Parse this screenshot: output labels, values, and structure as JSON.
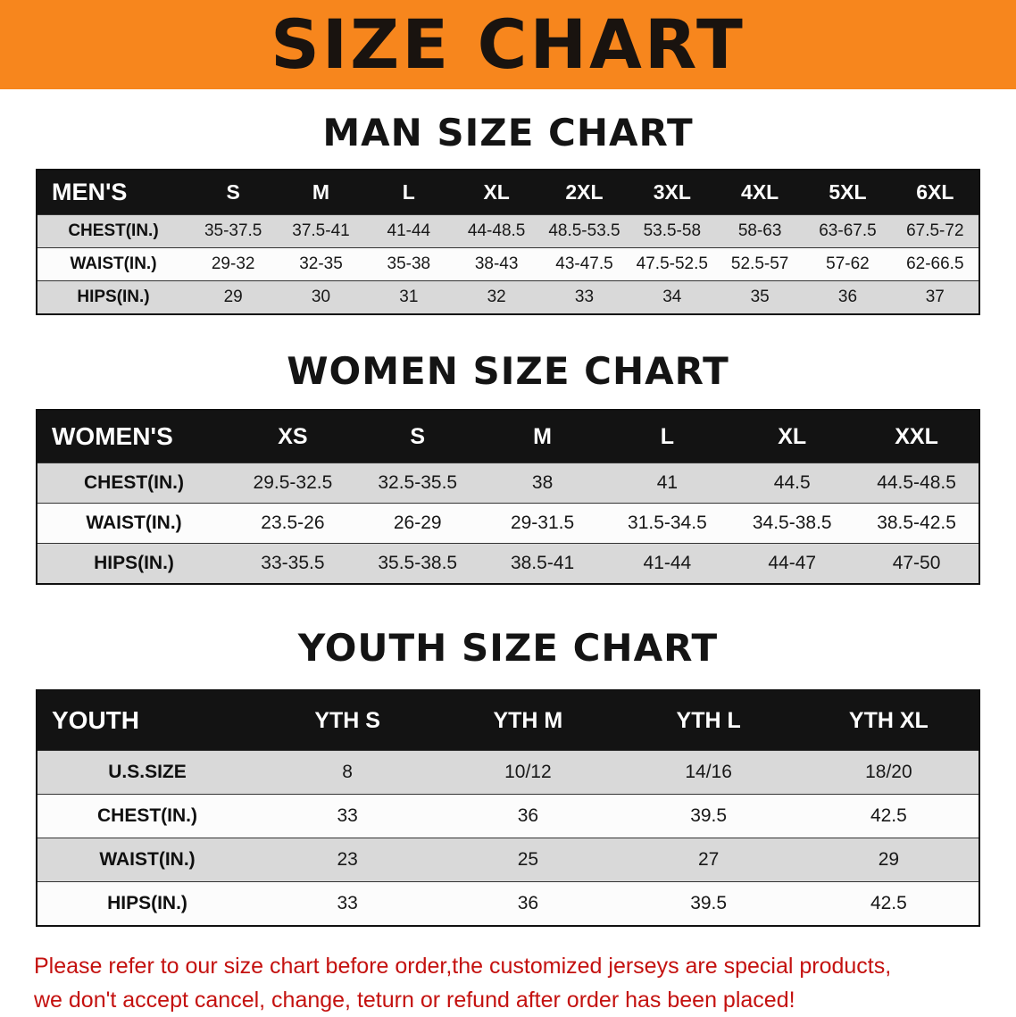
{
  "banner": {
    "title": "SIZE CHART",
    "bg_color": "#f7861d",
    "text_color": "#19130f"
  },
  "chart_data": [
    {
      "type": "table",
      "title": "MAN SIZE CHART",
      "columns": [
        "MEN'S",
        "S",
        "M",
        "L",
        "XL",
        "2XL",
        "3XL",
        "4XL",
        "5XL",
        "6XL"
      ],
      "rows": [
        [
          "CHEST(IN.)",
          "35-37.5",
          "37.5-41",
          "41-44",
          "44-48.5",
          "48.5-53.5",
          "53.5-58",
          "58-63",
          "63-67.5",
          "67.5-72"
        ],
        [
          "WAIST(IN.)",
          "29-32",
          "32-35",
          "35-38",
          "38-43",
          "43-47.5",
          "47.5-52.5",
          "52.5-57",
          "57-62",
          "62-66.5"
        ],
        [
          "HIPS(IN.)",
          "29",
          "30",
          "31",
          "32",
          "33",
          "34",
          "35",
          "36",
          "37"
        ]
      ]
    },
    {
      "type": "table",
      "title": "WOMEN SIZE CHART",
      "columns": [
        "WOMEN'S",
        "XS",
        "S",
        "M",
        "L",
        "XL",
        "XXL"
      ],
      "rows": [
        [
          "CHEST(IN.)",
          "29.5-32.5",
          "32.5-35.5",
          "38",
          "41",
          "44.5",
          "44.5-48.5"
        ],
        [
          "WAIST(IN.)",
          "23.5-26",
          "26-29",
          "29-31.5",
          "31.5-34.5",
          "34.5-38.5",
          "38.5-42.5"
        ],
        [
          "HIPS(IN.)",
          "33-35.5",
          "35.5-38.5",
          "38.5-41",
          "41-44",
          "44-47",
          "47-50"
        ]
      ]
    },
    {
      "type": "table",
      "title": "YOUTH SIZE CHART",
      "columns": [
        "YOUTH",
        "YTH S",
        "YTH M",
        "YTH L",
        "YTH XL"
      ],
      "rows": [
        [
          "U.S.SIZE",
          "8",
          "10/12",
          "14/16",
          "18/20"
        ],
        [
          "CHEST(IN.)",
          "33",
          "36",
          "39.5",
          "42.5"
        ],
        [
          "WAIST(IN.)",
          "23",
          "25",
          "27",
          "29"
        ],
        [
          "HIPS(IN.)",
          "33",
          "36",
          "39.5",
          "42.5"
        ]
      ]
    }
  ],
  "disclaimer": {
    "color": "#c4110f",
    "line1": "Please refer to our size chart before order,the customized jerseys are special products,",
    "line2": "we don't accept cancel, change, teturn or refund after order has been placed!"
  }
}
